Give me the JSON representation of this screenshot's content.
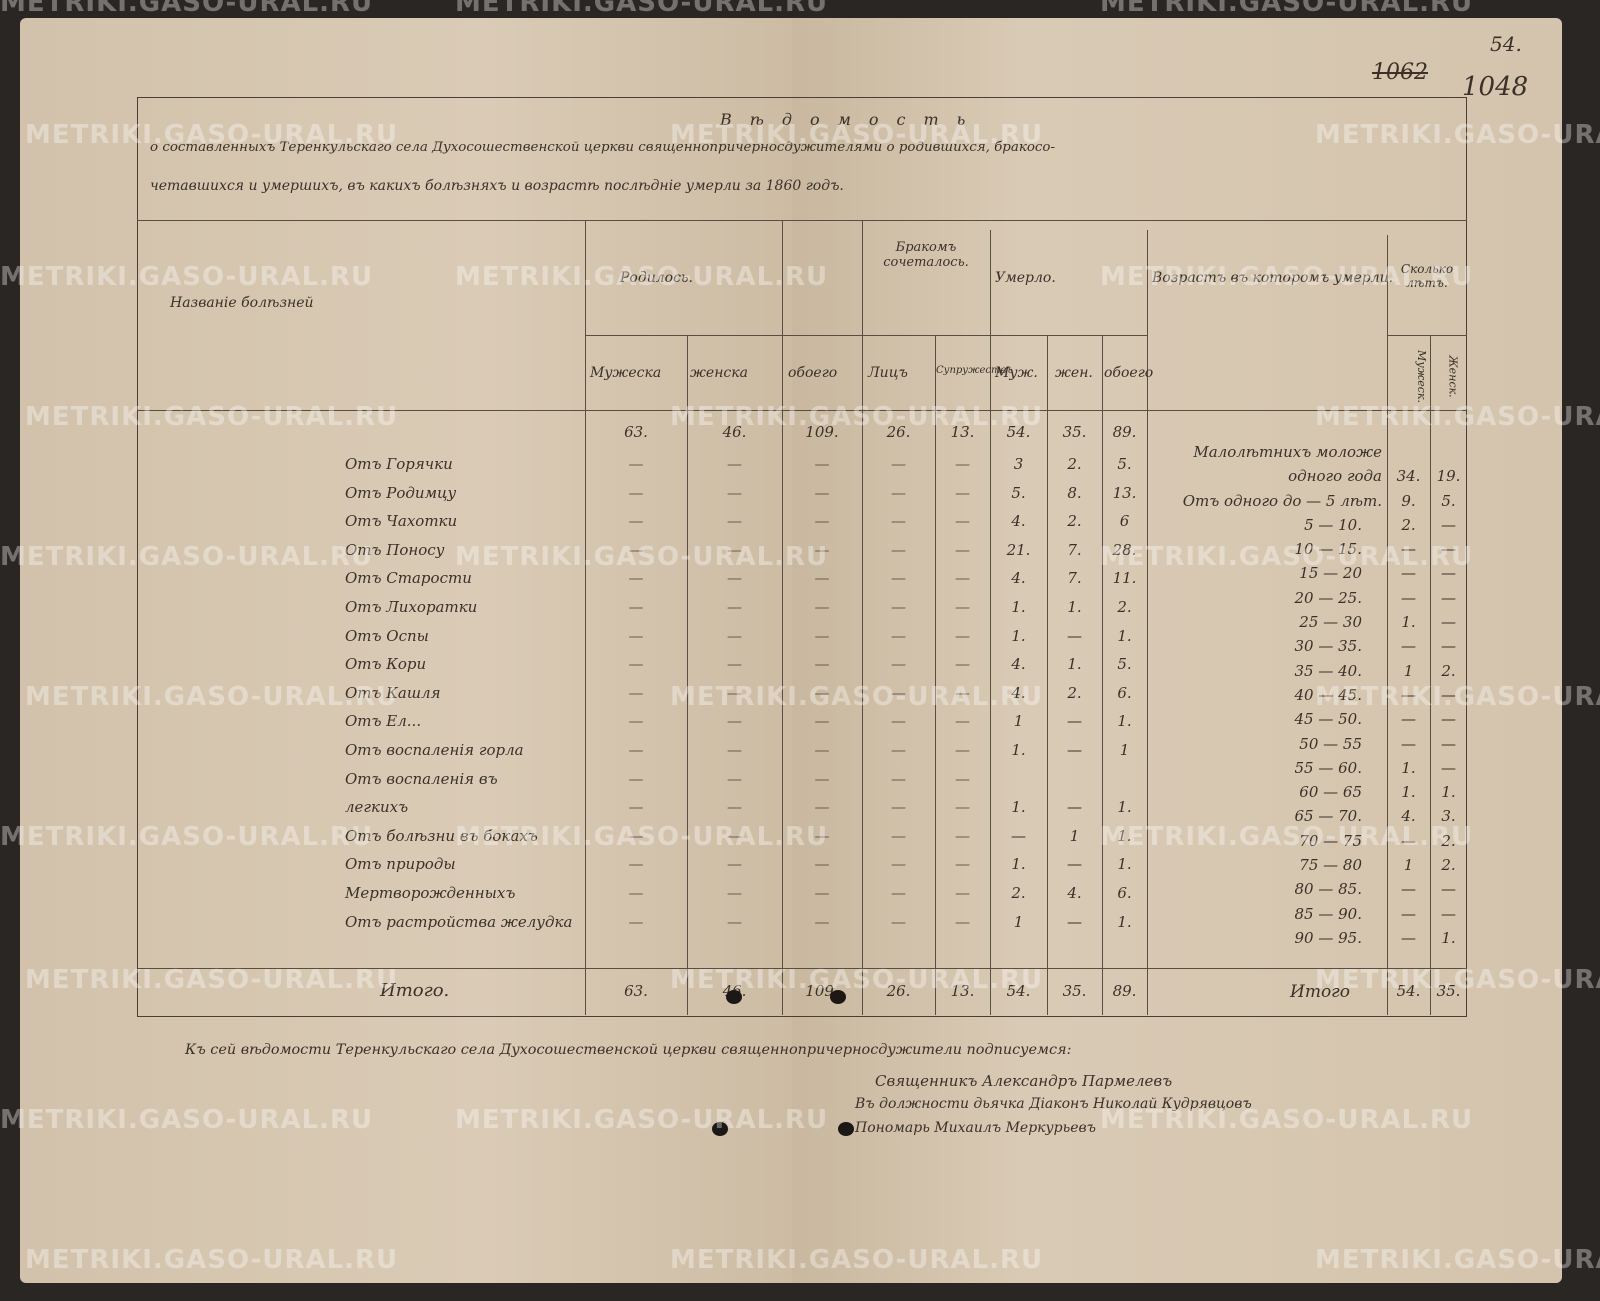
{
  "watermark": "METRIKI.GASO-URAL.RU",
  "archive_numbers": {
    "folio": "54.",
    "old_number_crossed": "1062",
    "new_number": "1048"
  },
  "title": {
    "line0": "Вѣдомость",
    "line1": "о составленныхъ Теренкульскаго села Духосошественской церкви священнопричерносдужителями о родившихся, бракосо-",
    "line2": "четавшихся и умершихъ, въ какихъ болѣзняхъ и возрастѣ послѣдніе умерли за 1860 годъ."
  },
  "headers": {
    "disease": "Названіе болѣзней",
    "born": "Родилось.",
    "born_male": "Мужеска",
    "born_female": "женска",
    "born_both": "обоего",
    "married": "Бракомъ сочеталось.",
    "married_persons": "Лицъ",
    "married_couples": "Супружествъ",
    "died": "Умерло.",
    "died_male": "Муж.",
    "died_female": "жен.",
    "died_both": "обоего",
    "age": "Возрастъ въ которомъ умерли.",
    "years": "Сколько лѣтъ.",
    "years_male": "Мужеск.",
    "years_female": "Женск."
  },
  "summary_row": {
    "born_male": "63.",
    "born_female": "46.",
    "born_both": "109.",
    "married_persons": "26.",
    "married_couples": "13.",
    "died_male": "54.",
    "died_female": "35.",
    "died_both": "89."
  },
  "diseases": [
    {
      "name": "Отъ Горячки",
      "m": "3",
      "f": "2.",
      "b": "5."
    },
    {
      "name": "Отъ Родимцу",
      "m": "5.",
      "f": "8.",
      "b": "13."
    },
    {
      "name": "Отъ Чахотки",
      "m": "4.",
      "f": "2.",
      "b": "6"
    },
    {
      "name": "Отъ Поносу",
      "m": "21.",
      "f": "7.",
      "b": "28."
    },
    {
      "name": "Отъ Старости",
      "m": "4.",
      "f": "7.",
      "b": "11."
    },
    {
      "name": "Отъ Лихоратки",
      "m": "1.",
      "f": "1.",
      "b": "2."
    },
    {
      "name": "Отъ Оспы",
      "m": "1.",
      "f": "—",
      "b": "1."
    },
    {
      "name": "Отъ Кори",
      "m": "4.",
      "f": "1.",
      "b": "5."
    },
    {
      "name": "Отъ Кашля",
      "m": "4.",
      "f": "2.",
      "b": "6."
    },
    {
      "name": "Отъ Ел...",
      "m": "1",
      "f": "—",
      "b": "1."
    },
    {
      "name": "Отъ воспаленія горла",
      "m": "1.",
      "f": "—",
      "b": "1"
    },
    {
      "name": "Отъ воспаленія въ",
      "m": "",
      "f": "",
      "b": ""
    },
    {
      "name": "легкихъ",
      "m": "1.",
      "f": "—",
      "b": "1."
    },
    {
      "name": "Отъ болѣзни въ бокахъ",
      "m": "—",
      "f": "1",
      "b": "1."
    },
    {
      "name": "Отъ природы",
      "m": "1.",
      "f": "—",
      "b": "1."
    },
    {
      "name": "Мертворожденныхъ",
      "m": "2.",
      "f": "4.",
      "b": "6."
    },
    {
      "name": "Отъ растройства желудка",
      "m": "1",
      "f": "—",
      "b": "1."
    }
  ],
  "ages": [
    {
      "range": "Малолѣтнихъ моложе",
      "m": "",
      "f": ""
    },
    {
      "range": "одного года",
      "m": "34.",
      "f": "19."
    },
    {
      "range": "Отъ одного до — 5 лѣт.",
      "m": "9.",
      "f": "5."
    },
    {
      "range": "5 — 10.",
      "m": "2.",
      "f": "—"
    },
    {
      "range": "10 — 15.",
      "m": "—",
      "f": "—"
    },
    {
      "range": "15 — 20",
      "m": "—",
      "f": "—"
    },
    {
      "range": "20 — 25.",
      "m": "—",
      "f": "—"
    },
    {
      "range": "25 — 30",
      "m": "1.",
      "f": "—"
    },
    {
      "range": "30 — 35.",
      "m": "—",
      "f": "—"
    },
    {
      "range": "35 — 40.",
      "m": "1",
      "f": "2."
    },
    {
      "range": "40 — 45.",
      "m": "—",
      "f": "—"
    },
    {
      "range": "45 — 50.",
      "m": "—",
      "f": "—"
    },
    {
      "range": "50 — 55",
      "m": "—",
      "f": "—"
    },
    {
      "range": "55 — 60.",
      "m": "1.",
      "f": "—"
    },
    {
      "range": "60 — 65",
      "m": "1.",
      "f": "1."
    },
    {
      "range": "65 — 70.",
      "m": "4.",
      "f": "3."
    },
    {
      "range": "70 — 75",
      "m": "—",
      "f": "2."
    },
    {
      "range": "75 — 80",
      "m": "1",
      "f": "2."
    },
    {
      "range": "80 — 85.",
      "m": "—",
      "f": "—"
    },
    {
      "range": "85 — 90.",
      "m": "—",
      "f": "—"
    },
    {
      "range": "90 — 95.",
      "m": "—",
      "f": "1."
    }
  ],
  "totals": {
    "label": "Итого.",
    "born_male": "63.",
    "born_female": "46.",
    "born_both": "109.",
    "married_persons": "26.",
    "married_couples": "13.",
    "died_male": "54.",
    "died_female": "35.",
    "died_both": "89.",
    "age_label": "Итого",
    "years_male": "54.",
    "years_female": "35."
  },
  "footer": {
    "statement": "Къ сей вѣдомости Теренкульскаго села Духосошественской церкви священнопричерносдужители подписуемся:",
    "signatures": [
      "Священникъ Александръ Пармелевъ",
      "Въ должности дьячка Діаконъ Николай Кудрявцовъ",
      "Пономарь Михаилъ Меркурьевъ"
    ]
  }
}
